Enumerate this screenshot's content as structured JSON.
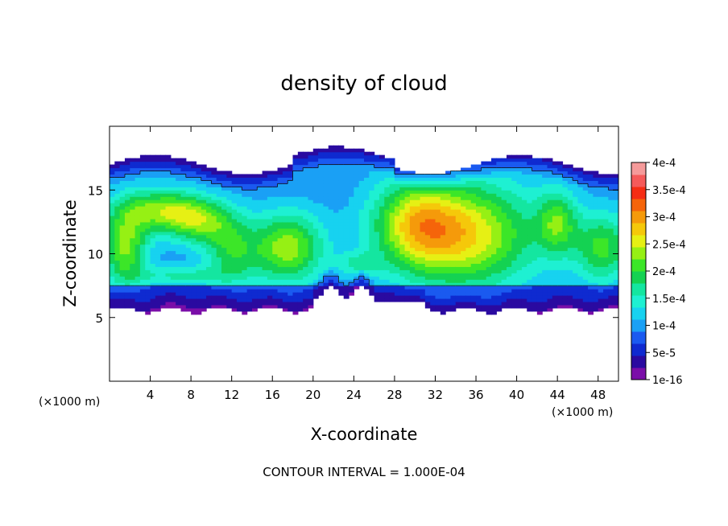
{
  "chart_data": {
    "type": "heatmap",
    "title": "density of cloud",
    "xlabel": "X-coordinate",
    "ylabel": "Z-coordinate",
    "x_unit": "(×1000 m)",
    "z_unit": "(×1000 m)",
    "xlim": [
      0,
      50
    ],
    "ylim": [
      0,
      20
    ],
    "x_ticks": [
      4,
      8,
      12,
      16,
      20,
      24,
      28,
      32,
      36,
      40,
      44,
      48
    ],
    "x_tick_labels": [
      "4",
      "8",
      "12",
      "16",
      "20",
      "24",
      "28",
      "32",
      "36",
      "40",
      "44",
      "48"
    ],
    "y_ticks": [
      5,
      10,
      15
    ],
    "y_tick_labels": [
      "5",
      "10",
      "15"
    ],
    "footer": "CONTOUR INTERVAL = 1.000E-04",
    "contour_level": 0.0001,
    "colorbar": {
      "levels": [
        1e-16,
        2.5e-05,
        5e-05,
        7.5e-05,
        0.0001,
        0.000125,
        0.00015,
        0.000175,
        0.0002,
        0.000225,
        0.00025,
        0.000275,
        0.0003,
        0.000325,
        0.00035,
        0.000375,
        0.0004
      ],
      "colors": [
        "#7a0ea8",
        "#2a0aa0",
        "#0f2ad0",
        "#1a5af0",
        "#1aa0f5",
        "#17d2f0",
        "#1ef0d2",
        "#14e6a0",
        "#14d252",
        "#3ce628",
        "#96f014",
        "#e6f014",
        "#f5c80a",
        "#f59a0a",
        "#f5640a",
        "#f52d14",
        "#f55a5a",
        "#f59a9a"
      ],
      "tick_values": [
        1e-16,
        5e-05,
        0.0001,
        0.00015,
        0.0002,
        0.00025,
        0.0003,
        0.00035,
        0.0004
      ],
      "tick_labels": [
        "1e-16",
        "5e-5",
        "1e-4",
        "1.5e-4",
        "2e-4",
        "2.5e-4",
        "3e-4",
        "3.5e-4",
        "4e-4"
      ]
    }
  }
}
